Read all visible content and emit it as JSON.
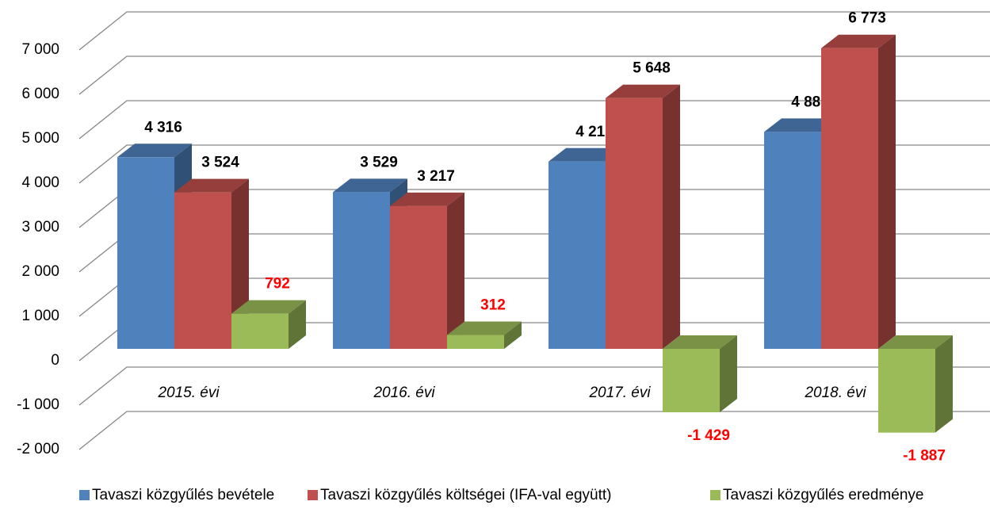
{
  "chart_data": {
    "type": "bar3d",
    "categories": [
      "2015. évi",
      "2016. évi",
      "2017. évi",
      "2018. évi"
    ],
    "series": [
      {
        "name": "Tavaszi közgyűlés bevétele",
        "color": "#4F81BD",
        "values": [
          4316,
          3529,
          4219,
          4886
        ],
        "value_labels": [
          "4 316",
          "3 529",
          "4 219",
          "4 886"
        ]
      },
      {
        "name": "Tavaszi közgyűlés költségei (IFA-val együtt)",
        "color": "#C0504D",
        "values": [
          3524,
          3217,
          5648,
          6773
        ],
        "value_labels": [
          "3 524",
          "3 217",
          "5 648",
          "6 773"
        ]
      },
      {
        "name": "Tavaszi közgyűlés eredménye",
        "color": "#9BBB59",
        "values": [
          792,
          312,
          -1429,
          -1887
        ],
        "value_labels": [
          "792",
          "312",
          "-1 429",
          "-1 887"
        ]
      }
    ],
    "ylim": [
      -2000,
      7000
    ],
    "yticks": [
      {
        "value": -2000,
        "label": "-2 000"
      },
      {
        "value": -1000,
        "label": "-1 000"
      },
      0,
      {
        "value": 1000,
        "label": "1 000"
      },
      {
        "value": 2000,
        "label": "2 000"
      },
      {
        "value": 3000,
        "label": "3 000"
      },
      {
        "value": 4000,
        "label": "4 000"
      },
      {
        "value": 5000,
        "label": "5 000"
      },
      {
        "value": 6000,
        "label": "6 000"
      },
      {
        "value": 7000,
        "label": "7 000"
      }
    ],
    "grid": true,
    "legend": "bottom"
  }
}
